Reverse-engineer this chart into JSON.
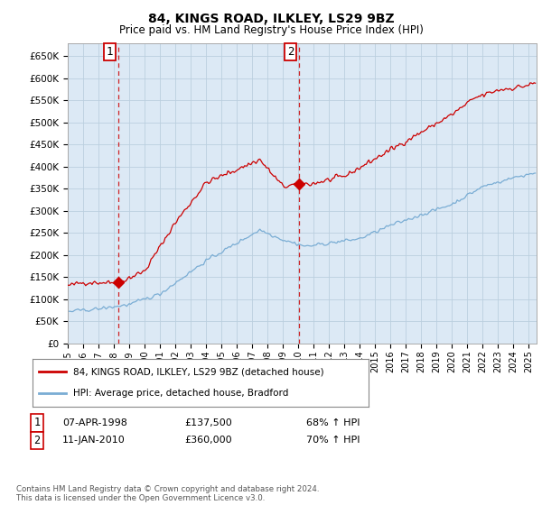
{
  "title": "84, KINGS ROAD, ILKLEY, LS29 9BZ",
  "subtitle": "Price paid vs. HM Land Registry's House Price Index (HPI)",
  "ylabel_ticks": [
    "£0",
    "£50K",
    "£100K",
    "£150K",
    "£200K",
    "£250K",
    "£300K",
    "£350K",
    "£400K",
    "£450K",
    "£500K",
    "£550K",
    "£600K",
    "£650K"
  ],
  "ylim": [
    0,
    680000
  ],
  "xlim_start": 1995.0,
  "xlim_end": 2025.5,
  "plot_bg_color": "#dce9f5",
  "legend_line1": "84, KINGS ROAD, ILKLEY, LS29 9BZ (detached house)",
  "legend_line2": "HPI: Average price, detached house, Bradford",
  "annotation1_label": "1",
  "annotation1_date": "07-APR-1998",
  "annotation1_price": "£137,500",
  "annotation1_hpi": "68% ↑ HPI",
  "annotation1_year": 1998.27,
  "annotation1_value": 137500,
  "annotation2_label": "2",
  "annotation2_date": "11-JAN-2010",
  "annotation2_price": "£360,000",
  "annotation2_hpi": "70% ↑ HPI",
  "annotation2_year": 2010.03,
  "annotation2_value": 360000,
  "red_line_color": "#cc0000",
  "blue_line_color": "#7aadd4",
  "grid_color": "#bbcfdf",
  "background_color": "#ffffff",
  "footer_text": "Contains HM Land Registry data © Crown copyright and database right 2024.\nThis data is licensed under the Open Government Licence v3.0.",
  "xtick_years": [
    1995,
    1996,
    1997,
    1998,
    1999,
    2000,
    2001,
    2002,
    2003,
    2004,
    2005,
    2006,
    2007,
    2008,
    2009,
    2010,
    2011,
    2012,
    2013,
    2014,
    2015,
    2016,
    2017,
    2018,
    2019,
    2020,
    2021,
    2022,
    2023,
    2024,
    2025
  ]
}
